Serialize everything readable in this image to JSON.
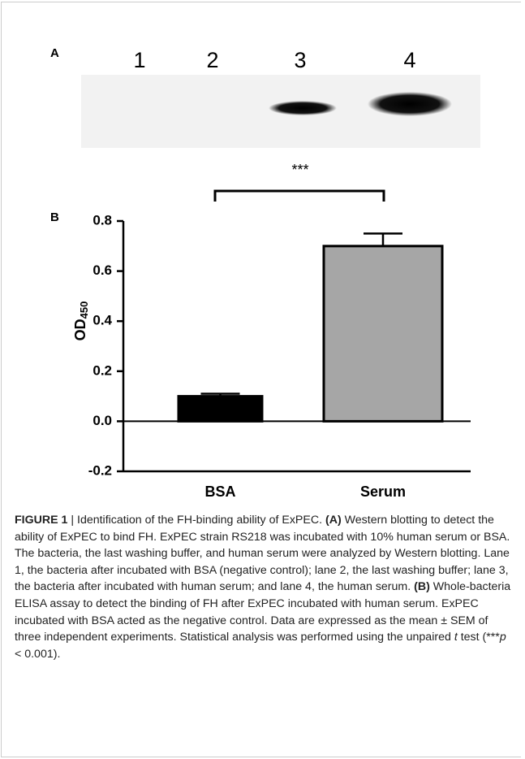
{
  "panel_a": {
    "label": "A",
    "lanes": [
      "1",
      "2",
      "3",
      "4"
    ]
  },
  "chart_data": {
    "type": "bar",
    "panel_label": "B",
    "categories": [
      "BSA",
      "Serum"
    ],
    "values": [
      0.1,
      0.7
    ],
    "errors": [
      0.01,
      0.05
    ],
    "colors": [
      "#000000",
      "#a6a6a6"
    ],
    "ylabel": "OD",
    "ylabel_subscript": "450",
    "significance": "***",
    "ylim": [
      -0.2,
      0.8
    ],
    "yticks": [
      -0.2,
      {
        "value": 0,
        "label": "0.0"
      },
      0.2,
      0.4,
      0.6,
      0.8
    ]
  },
  "caption": {
    "segments": [
      {
        "text": "FIGURE 1",
        "bold": true
      },
      {
        "text": " | Identification of the FH-binding ability of ExPEC. "
      },
      {
        "text": "(A)",
        "bold": true
      },
      {
        "text": " Western blotting to detect the ability of ExPEC to bind FH. ExPEC strain RS218 was incubated with 10% human serum or BSA. The bacteria, the last washing buffer, and human serum were analyzed by Western blotting. Lane 1, the bacteria after incubated with BSA (negative control); lane 2, the last washing buffer; lane 3, the bacteria after incubated with human serum; and lane 4, the human serum. "
      },
      {
        "text": "(B)",
        "bold": true
      },
      {
        "text": " Whole-bacteria ELISA assay to detect the binding of FH after ExPEC incubated with human serum. ExPEC incubated with BSA acted as the negative control. Data are expressed as the mean ± SEM of three independent experiments. Statistical analysis was performed using the unpaired "
      },
      {
        "text": "t",
        "italic": true
      },
      {
        "text": " test (***"
      },
      {
        "text": "p",
        "italic": true
      },
      {
        "text": " < 0.001)."
      }
    ]
  }
}
